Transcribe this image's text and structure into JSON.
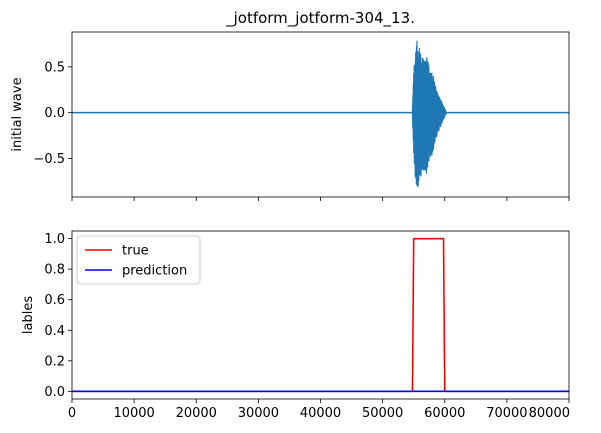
{
  "chart_data": [
    {
      "type": "line",
      "title": "_jotform_jotform-304_13.",
      "xlabel": "",
      "ylabel": "initial wave",
      "xlim": [
        0,
        80000
      ],
      "ylim": [
        -0.92,
        0.88
      ],
      "yticks": [
        -0.5,
        0.0,
        0.5
      ],
      "ytick_labels": [
        "−0.5",
        "0.0",
        "0.5"
      ],
      "xticks": [
        0,
        10000,
        20000,
        30000,
        40000,
        50000,
        60000,
        70000,
        80000
      ],
      "xtick_labels_visible": false,
      "color": "#1f77b4",
      "series": [
        {
          "values_description_free": true,
          "baseline": 0.0,
          "burst": {
            "x_start": 54800,
            "x_end": 60200,
            "envelope": [
              [
                54800,
                0.05
              ],
              [
                55000,
                0.45
              ],
              [
                55300,
                0.75
              ],
              [
                55600,
                0.8
              ],
              [
                56000,
                0.7
              ],
              [
                56500,
                0.6
              ],
              [
                57000,
                0.65
              ],
              [
                57500,
                0.5
              ],
              [
                58000,
                0.45
              ],
              [
                58500,
                0.3
              ],
              [
                59000,
                0.2
              ],
              [
                59500,
                0.12
              ],
              [
                60200,
                0.02
              ]
            ]
          }
        }
      ],
      "grid": false
    },
    {
      "type": "line",
      "title": "",
      "xlabel": "",
      "ylabel": "lables",
      "xlim": [
        0,
        80000
      ],
      "ylim": [
        -0.05,
        1.05
      ],
      "yticks": [
        0.0,
        0.2,
        0.4,
        0.6,
        0.8,
        1.0
      ],
      "ytick_labels": [
        "0.0",
        "0.2",
        "0.4",
        "0.6",
        "0.8",
        "1.0"
      ],
      "xticks": [
        0,
        10000,
        20000,
        30000,
        40000,
        50000,
        60000,
        70000,
        80000
      ],
      "xtick_labels": [
        "0",
        "10000",
        "20000",
        "30000",
        "40000",
        "50000",
        "60000",
        "70000",
        "80000"
      ],
      "series": [
        {
          "name": "true",
          "color": "#ff0000",
          "x": [
            0,
            54800,
            55000,
            59800,
            60000,
            80000
          ],
          "y": [
            0,
            0,
            1,
            1,
            0,
            0
          ]
        },
        {
          "name": "prediction",
          "color": "#0000ff",
          "x": [
            0,
            80000
          ],
          "y": [
            0,
            0
          ]
        }
      ],
      "legend": "top-left",
      "grid": false
    }
  ]
}
